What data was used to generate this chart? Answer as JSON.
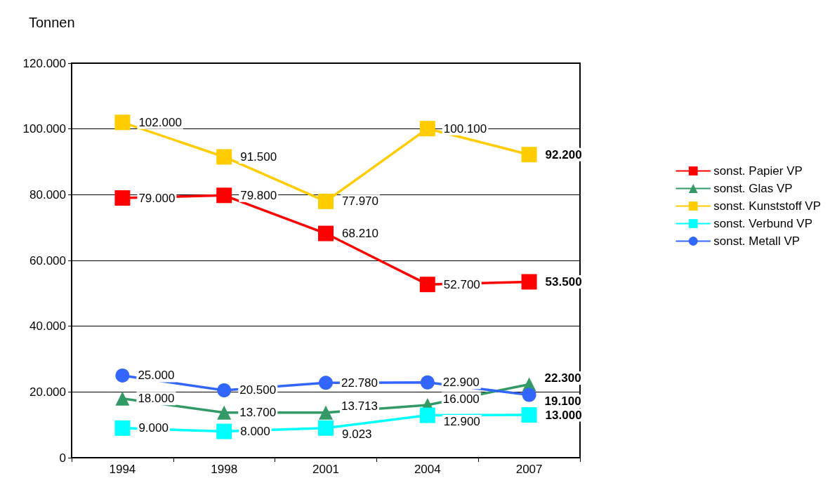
{
  "chart_data": {
    "type": "line",
    "ylabel": "Tonnen",
    "categories": [
      "1994",
      "1998",
      "2001",
      "2004",
      "2007"
    ],
    "ylim": [
      0,
      120000
    ],
    "yticks": [
      0,
      {
        "value": 20000,
        "label": "20.000"
      },
      {
        "value": 40000,
        "label": "40.000"
      },
      {
        "value": 60000,
        "label": "60.000"
      },
      {
        "value": 80000,
        "label": "80.000"
      },
      {
        "value": 100000,
        "label": "100.000"
      },
      {
        "value": 120000,
        "label": "120.000"
      }
    ],
    "grid": "y",
    "legend": "right",
    "series": [
      {
        "name": "sonst. Papier VP",
        "color": "#ff0000",
        "marker": "square",
        "values": [
          79000,
          79800,
          68210,
          52700,
          53500
        ],
        "value_labels": [
          "79.000",
          "79.800",
          "68.210",
          "52.700",
          "53.500"
        ]
      },
      {
        "name": "sonst. Glas VP",
        "color": "#339966",
        "marker": "triangle",
        "values": [
          18000,
          13700,
          13713,
          16000,
          22300
        ],
        "value_labels": [
          "18.000",
          "13.700",
          "13.713",
          "16.000",
          "22.300"
        ]
      },
      {
        "name": "sonst. Kunststoff VP",
        "color": "#ffcc00",
        "marker": "square",
        "values": [
          102000,
          91500,
          77970,
          100100,
          92200
        ],
        "value_labels": [
          "102.000",
          "91.500",
          "77.970",
          "100.100",
          "92.200"
        ]
      },
      {
        "name": "sonst. Verbund VP",
        "color": "#00ffff",
        "marker": "square",
        "values": [
          9000,
          8000,
          9023,
          12900,
          13000
        ],
        "value_labels": [
          "9.000",
          "8.000",
          "9.023",
          "12.900",
          "13.000"
        ]
      },
      {
        "name": "sonst. Metall VP",
        "color": "#3366ff",
        "marker": "circle",
        "values": [
          25000,
          20500,
          22780,
          22900,
          19100
        ],
        "value_labels": [
          "25.000",
          "20.500",
          "22.780",
          "22.900",
          "19.100"
        ]
      }
    ]
  }
}
